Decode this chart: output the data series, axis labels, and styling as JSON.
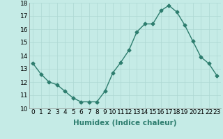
{
  "x": [
    0,
    1,
    2,
    3,
    4,
    5,
    6,
    7,
    8,
    9,
    10,
    11,
    12,
    13,
    14,
    15,
    16,
    17,
    18,
    19,
    20,
    21,
    22,
    23
  ],
  "y": [
    13.4,
    12.6,
    12.0,
    11.8,
    11.3,
    10.8,
    10.5,
    10.5,
    10.5,
    11.3,
    12.7,
    13.5,
    14.4,
    15.8,
    16.4,
    16.4,
    17.4,
    17.8,
    17.3,
    16.3,
    15.1,
    13.9,
    13.4,
    12.5
  ],
  "line_color": "#2d7d6e",
  "marker": "D",
  "markersize": 2.5,
  "linewidth": 1.0,
  "bg_color": "#c5ebe6",
  "grid_color": "#aed8d3",
  "xlabel": "Humidex (Indice chaleur)",
  "xlabel_fontsize": 7.5,
  "xlabel_weight": "bold",
  "ylim": [
    10,
    18
  ],
  "xlim": [
    -0.5,
    23.5
  ],
  "yticks": [
    10,
    11,
    12,
    13,
    14,
    15,
    16,
    17,
    18
  ],
  "xticks": [
    0,
    1,
    2,
    3,
    4,
    5,
    6,
    7,
    8,
    9,
    10,
    11,
    12,
    13,
    14,
    15,
    16,
    17,
    18,
    19,
    20,
    21,
    22,
    23
  ],
  "tick_fontsize": 6.5
}
